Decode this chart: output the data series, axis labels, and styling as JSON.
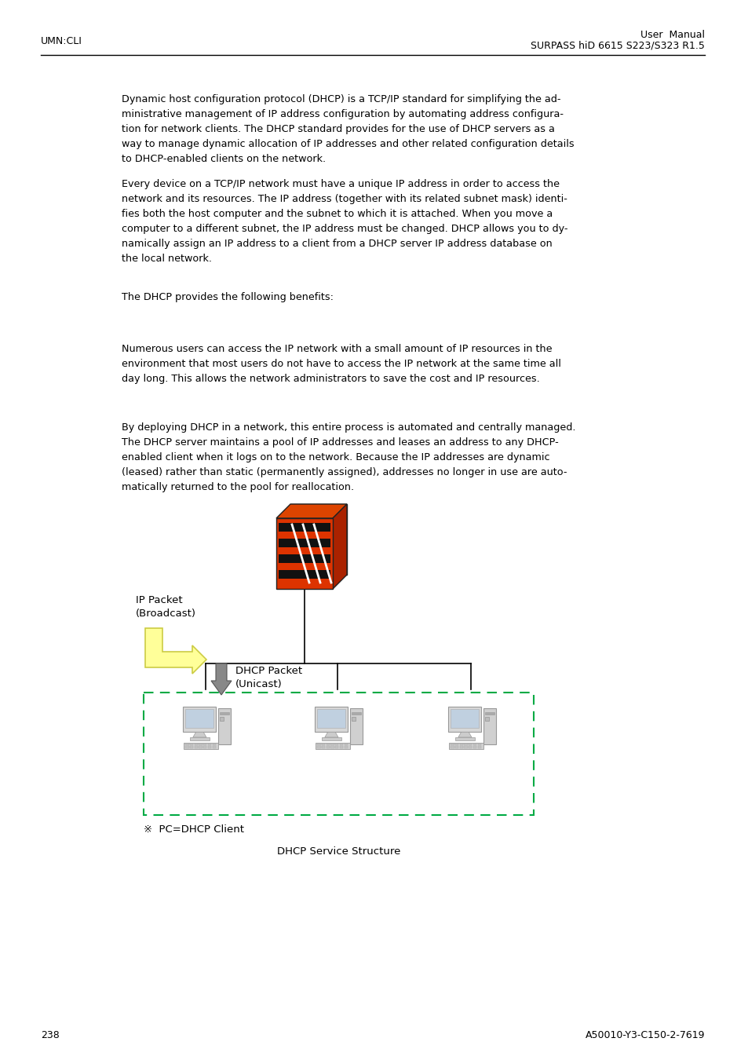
{
  "page_left": "UMN:CLI",
  "page_right_line1": "User  Manual",
  "page_right_line2": "SURPASS hiD 6615 S223/S323 R1.5",
  "page_num_left": "238",
  "page_num_right": "A50010-Y3-C150-2-7619",
  "para1": "Dynamic host configuration protocol (DHCP) is a TCP/IP standard for simplifying the ad-\nministrative management of IP address configuration by automating address configura-\ntion for network clients. The DHCP standard provides for the use of DHCP servers as a\nway to manage dynamic allocation of IP addresses and other related configuration details\nto DHCP-enabled clients on the network.",
  "para2": "Every device on a TCP/IP network must have a unique IP address in order to access the\nnetwork and its resources. The IP address (together with its related subnet mask) identi-\nfies both the host computer and the subnet to which it is attached. When you move a\ncomputer to a different subnet, the IP address must be changed. DHCP allows you to dy-\nnamically assign an IP address to a client from a DHCP server IP address database on\nthe local network.",
  "para3": "The DHCP provides the following benefits:",
  "para4": "Numerous users can access the IP network with a small amount of IP resources in the\nenvironment that most users do not have to access the IP network at the same time all\nday long. This allows the network administrators to save the cost and IP resources.",
  "para5": "By deploying DHCP in a network, this entire process is automated and centrally managed.\nThe DHCP server maintains a pool of IP addresses and leases an address to any DHCP-\nenabled client when it logs on to the network. Because the IP addresses are dynamic\n(leased) rather than static (permanently assigned), addresses no longer in use are auto-\nmatically returned to the pool for reallocation.",
  "label_ip_packet": "IP Packet\n(Broadcast)",
  "label_dhcp_packet": "DHCP Packet\n(Unicast)",
  "label_pc": "※  PC=DHCP Client",
  "label_fig": "DHCP Service Structure",
  "bg_color": "#ffffff",
  "text_color": "#000000",
  "header_line_color": "#000000",
  "dashed_box_color": "#00aa44",
  "font_size_body": 9.2,
  "font_size_header": 9.0,
  "linespacing": 1.6
}
